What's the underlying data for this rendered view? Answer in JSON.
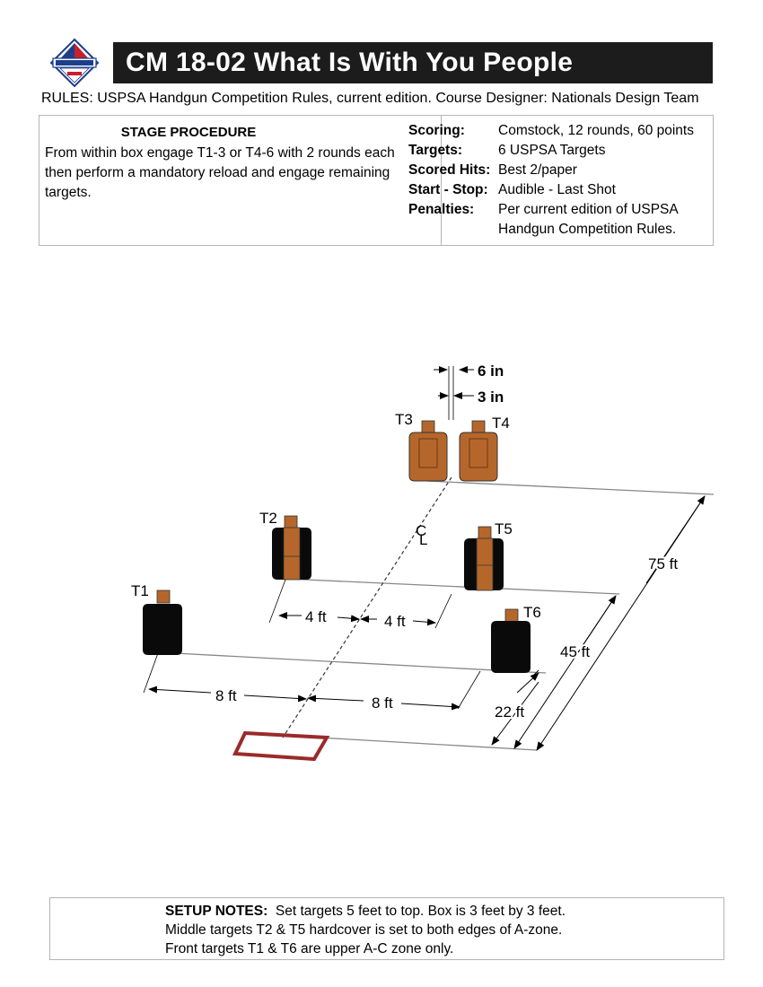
{
  "header": {
    "title": "CM 18-02  What Is With You People",
    "rules_line": "RULES:  USPSA Handgun Competition Rules, current edition.  Course Designer: Nationals Design Team"
  },
  "procedure": {
    "heading": "STAGE PROCEDURE",
    "text": "From within box engage T1-3 or T4-6 with 2 rounds each then perform a mandatory reload and engage remaining targets."
  },
  "specs": [
    {
      "label": "Scoring:",
      "value": "Comstock, 12 rounds, 60 points"
    },
    {
      "label": "Targets:",
      "value": "6 USPSA Targets"
    },
    {
      "label": "Scored Hits:",
      "value": "Best 2/paper"
    },
    {
      "label": "Start - Stop:",
      "value": "Audible - Last Shot"
    },
    {
      "label": "Penalties:",
      "value": "Per current edition of USPSA Handgun Competition Rules."
    }
  ],
  "diagram": {
    "targets": [
      "T1",
      "T2",
      "T3",
      "T4",
      "T5",
      "T6"
    ],
    "dimensions": {
      "six_in": "6 in",
      "three_in": "3 in",
      "four_ft_left": "4 ft",
      "four_ft_right": "4 ft",
      "eight_ft_left": "8 ft",
      "eight_ft_right": "8 ft",
      "twenty_two_ft": "22 ft",
      "forty_five_ft": "45 ft",
      "seventy_five_ft": "75 ft"
    },
    "centerline_label": "C",
    "centerline_sub": "L",
    "colors": {
      "paper_target": "#b5672b",
      "hardcover": "#0a0a0a",
      "shooting_box": "#9b2a2a"
    }
  },
  "setup_notes": {
    "label": "SETUP NOTES:",
    "line1": "Set targets 5 feet to top. Box is 3 feet by 3 feet.",
    "line2": "Middle targets T2 & T5 hardcover is set to both edges of A-zone.",
    "line3": "Front targets T1 & T6 are upper A-C zone only."
  }
}
